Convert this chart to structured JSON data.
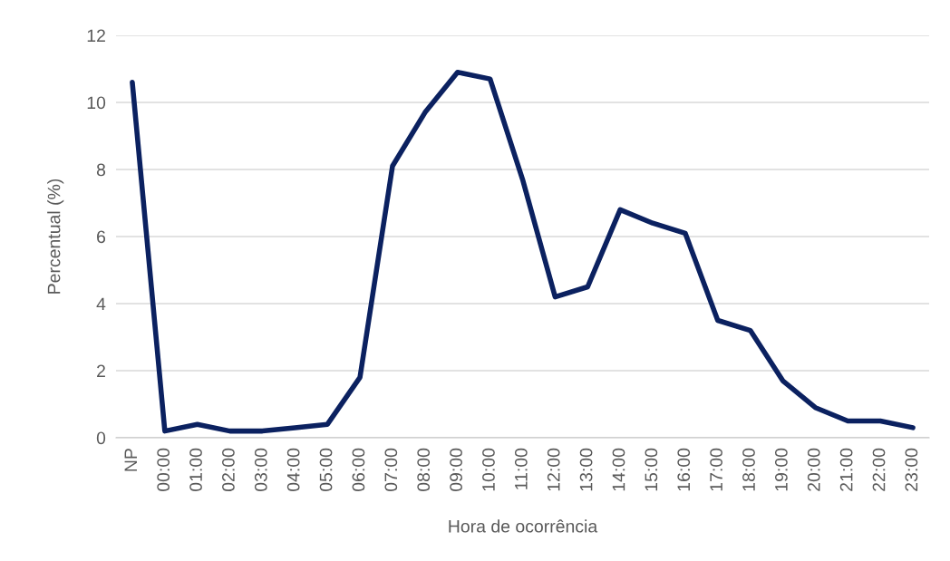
{
  "chart_data": {
    "type": "line",
    "xlabel": "Hora de ocorrência",
    "ylabel": "Percentual (%)",
    "categories": [
      "NP",
      "00:00",
      "01:00",
      "02:00",
      "03:00",
      "04:00",
      "05:00",
      "06:00",
      "07:00",
      "08:00",
      "09:00",
      "10:00",
      "11:00",
      "12:00",
      "13:00",
      "14:00",
      "15:00",
      "16:00",
      "17:00",
      "18:00",
      "19:00",
      "20:00",
      "21:00",
      "22:00",
      "23:00"
    ],
    "series": [
      {
        "color": "#0b2160",
        "values": [
          10.6,
          0.2,
          0.4,
          0.2,
          0.2,
          0.3,
          0.4,
          1.8,
          8.1,
          9.7,
          10.9,
          10.7,
          7.7,
          4.2,
          4.5,
          6.8,
          6.4,
          6.1,
          3.5,
          3.2,
          1.7,
          0.9,
          0.5,
          0.5,
          0.3
        ]
      }
    ],
    "ylim": [
      0,
      12
    ],
    "yticks": [
      0,
      2,
      4,
      6,
      8,
      10,
      12
    ],
    "grid": "y",
    "marker": "none",
    "line_style": "solid",
    "legend": false
  }
}
